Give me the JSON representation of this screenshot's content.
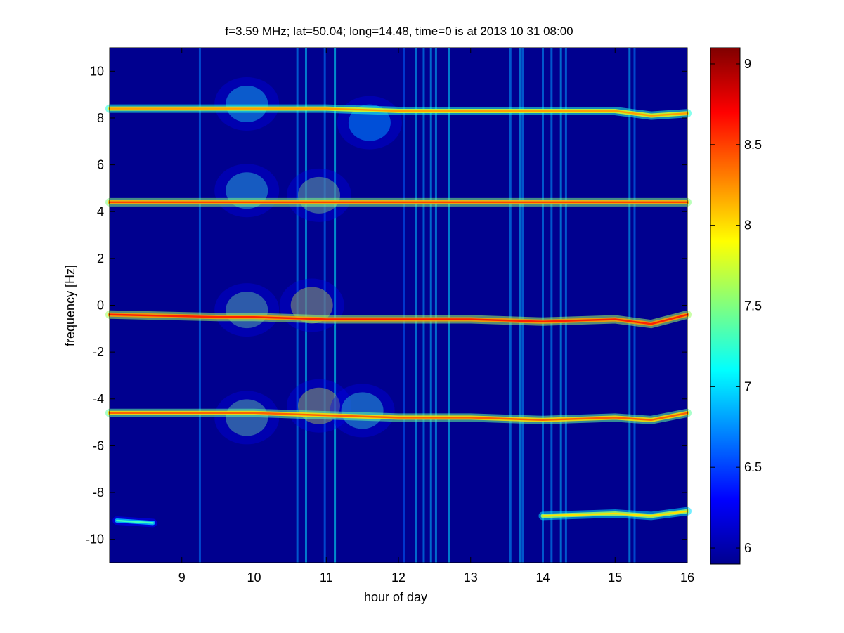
{
  "chart_data": {
    "type": "heatmap",
    "title": "f=3.59 MHz;  lat=50.04; long=14.48, time=0 is at 2013 10 31 08:00",
    "xlabel": "hour of day",
    "ylabel": "frequency [Hz]",
    "xlim": [
      8.0,
      16.0
    ],
    "ylim": [
      -11.0,
      11.0
    ],
    "x_ticks": [
      9,
      10,
      11,
      12,
      13,
      14,
      15,
      16
    ],
    "y_ticks": [
      10,
      8,
      6,
      4,
      2,
      0,
      -2,
      -4,
      -6,
      -8,
      -10
    ],
    "colorbar": {
      "ticks": [
        "9",
        "8.5",
        "8",
        "7.5",
        "7",
        "6.5",
        "6"
      ],
      "tick_values": [
        9,
        8.5,
        8,
        7.5,
        7,
        6.5,
        6
      ],
      "range": [
        5.9,
        9.1
      ],
      "colormap": "jet"
    },
    "background_level": 6.0,
    "traces": [
      {
        "name": "trace at 8.4 Hz",
        "points": [
          [
            8.0,
            8.4
          ],
          [
            9.0,
            8.4
          ],
          [
            10.0,
            8.4
          ],
          [
            11.0,
            8.4
          ],
          [
            12.0,
            8.3
          ],
          [
            13.0,
            8.3
          ],
          [
            14.0,
            8.3
          ],
          [
            15.0,
            8.3
          ],
          [
            15.5,
            8.1
          ],
          [
            16.0,
            8.2
          ]
        ],
        "level": 8.2
      },
      {
        "name": "trace at 4.4 Hz",
        "points": [
          [
            8.0,
            4.4
          ],
          [
            16.0,
            4.4
          ]
        ],
        "level": 8.5
      },
      {
        "name": "trace at -0.4 Hz",
        "points": [
          [
            8.0,
            -0.4
          ],
          [
            9.5,
            -0.5
          ],
          [
            10.0,
            -0.5
          ],
          [
            11.0,
            -0.6
          ],
          [
            12.0,
            -0.6
          ],
          [
            13.0,
            -0.6
          ],
          [
            14.0,
            -0.7
          ],
          [
            15.0,
            -0.6
          ],
          [
            15.5,
            -0.8
          ],
          [
            16.0,
            -0.4
          ]
        ],
        "level": 8.6
      },
      {
        "name": "trace at -4.6 Hz",
        "points": [
          [
            8.0,
            -4.6
          ],
          [
            9.0,
            -4.6
          ],
          [
            10.0,
            -4.6
          ],
          [
            11.0,
            -4.7
          ],
          [
            12.0,
            -4.8
          ],
          [
            13.0,
            -4.8
          ],
          [
            14.0,
            -4.9
          ],
          [
            15.0,
            -4.8
          ],
          [
            15.5,
            -4.9
          ],
          [
            16.0,
            -4.6
          ]
        ],
        "level": 8.4
      },
      {
        "name": "trace at -9.0 Hz",
        "points": [
          [
            14.0,
            -9.0
          ],
          [
            15.0,
            -8.9
          ],
          [
            15.5,
            -9.0
          ],
          [
            16.0,
            -8.8
          ]
        ],
        "level": 8.0
      },
      {
        "name": "trace at -9.2 Hz",
        "points": [
          [
            8.1,
            -9.2
          ],
          [
            8.6,
            -9.3
          ]
        ],
        "level": 7.3
      }
    ],
    "disturbances": [
      {
        "x": 9.9,
        "y": 8.6,
        "level": 7.2
      },
      {
        "x": 9.9,
        "y": 4.9,
        "level": 7.3
      },
      {
        "x": 10.9,
        "y": 4.7,
        "level": 7.6
      },
      {
        "x": 9.9,
        "y": -0.2,
        "level": 7.5
      },
      {
        "x": 10.8,
        "y": 0.0,
        "level": 7.8
      },
      {
        "x": 9.9,
        "y": -4.8,
        "level": 7.5
      },
      {
        "x": 10.9,
        "y": -4.3,
        "level": 7.8
      },
      {
        "x": 11.5,
        "y": -4.5,
        "level": 7.3
      },
      {
        "x": 11.6,
        "y": 7.8,
        "level": 7.0
      }
    ],
    "vertical_stripes": [
      {
        "x": 9.25,
        "level": 6.7
      },
      {
        "x": 10.6,
        "level": 6.8
      },
      {
        "x": 10.72,
        "level": 7.0
      },
      {
        "x": 10.98,
        "level": 6.7
      },
      {
        "x": 11.12,
        "level": 7.1
      },
      {
        "x": 12.08,
        "level": 6.6
      },
      {
        "x": 12.24,
        "level": 6.9
      },
      {
        "x": 12.35,
        "level": 6.8
      },
      {
        "x": 12.45,
        "level": 6.9
      },
      {
        "x": 12.52,
        "level": 6.9
      },
      {
        "x": 12.7,
        "level": 7.0
      },
      {
        "x": 13.55,
        "level": 6.8
      },
      {
        "x": 13.68,
        "level": 6.9
      },
      {
        "x": 13.72,
        "level": 6.8
      },
      {
        "x": 14.0,
        "level": 6.8
      },
      {
        "x": 14.12,
        "level": 6.8
      },
      {
        "x": 14.25,
        "level": 6.9
      },
      {
        "x": 14.32,
        "level": 6.8
      },
      {
        "x": 15.2,
        "level": 6.9
      },
      {
        "x": 15.27,
        "level": 6.7
      }
    ]
  }
}
